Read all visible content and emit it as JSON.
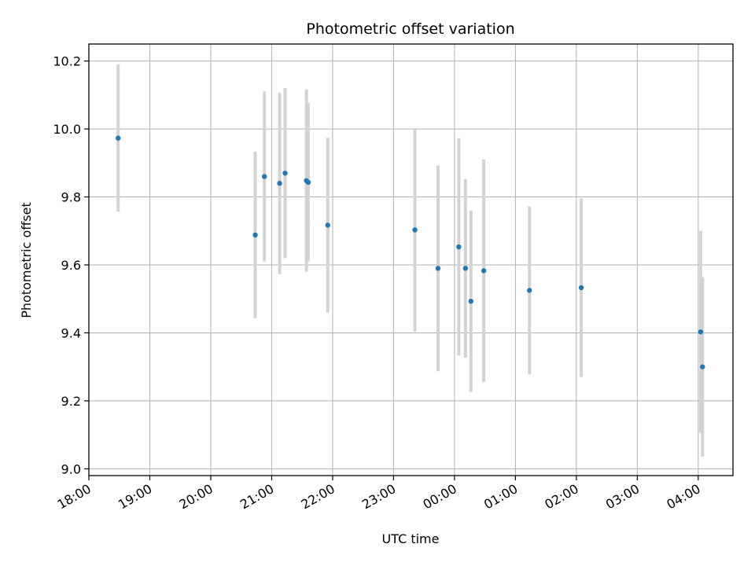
{
  "chart_data": {
    "type": "scatter",
    "title": "Photometric offset variation",
    "xlabel": "UTC time",
    "ylabel": "Photometric offset",
    "grid": true,
    "x_ticks": [
      "18:00",
      "19:00",
      "20:00",
      "21:00",
      "22:00",
      "23:00",
      "00:00",
      "01:00",
      "02:00",
      "03:00",
      "04:00"
    ],
    "y_ticks": [
      "9.0",
      "9.2",
      "9.4",
      "9.6",
      "9.8",
      "10.0",
      "10.2"
    ],
    "x_unit": "hours after 18:00 UTC",
    "xlim": [
      0,
      10.57
    ],
    "ylim": [
      8.98,
      10.25
    ],
    "colors": {
      "point": "#1f77b4",
      "errorbar": "#d3d3d3",
      "grid": "#b0b0b0"
    },
    "points": [
      {
        "time": "18:29",
        "x": 0.48,
        "y": 9.973,
        "err_low": 9.757,
        "err_high": 10.19
      },
      {
        "time": "20:43",
        "x": 2.73,
        "y": 9.688,
        "err_low": 9.443,
        "err_high": 9.933
      },
      {
        "time": "20:52",
        "x": 2.88,
        "y": 9.86,
        "err_low": 9.61,
        "err_high": 10.11
      },
      {
        "time": "21:08",
        "x": 3.13,
        "y": 9.84,
        "err_low": 9.573,
        "err_high": 10.107
      },
      {
        "time": "21:13",
        "x": 3.22,
        "y": 9.87,
        "err_low": 9.62,
        "err_high": 10.12
      },
      {
        "time": "21:34",
        "x": 3.57,
        "y": 9.848,
        "err_low": 9.58,
        "err_high": 10.116
      },
      {
        "time": "21:36",
        "x": 3.6,
        "y": 9.843,
        "err_low": 9.61,
        "err_high": 10.076
      },
      {
        "time": "21:55",
        "x": 3.92,
        "y": 9.717,
        "err_low": 9.46,
        "err_high": 9.974
      },
      {
        "time": "23:21",
        "x": 5.35,
        "y": 9.703,
        "err_low": 9.403,
        "err_high": 10.003
      },
      {
        "time": "23:44",
        "x": 5.73,
        "y": 9.59,
        "err_low": 9.287,
        "err_high": 9.893
      },
      {
        "time": "00:04",
        "x": 6.07,
        "y": 9.653,
        "err_low": 9.333,
        "err_high": 9.973
      },
      {
        "time": "00:11",
        "x": 6.18,
        "y": 9.59,
        "err_low": 9.327,
        "err_high": 9.853
      },
      {
        "time": "00:16",
        "x": 6.27,
        "y": 9.493,
        "err_low": 9.226,
        "err_high": 9.76
      },
      {
        "time": "00:29",
        "x": 6.48,
        "y": 9.583,
        "err_low": 9.256,
        "err_high": 9.91
      },
      {
        "time": "01:14",
        "x": 7.23,
        "y": 9.525,
        "err_low": 9.278,
        "err_high": 9.772
      },
      {
        "time": "02:05",
        "x": 8.08,
        "y": 9.533,
        "err_low": 9.27,
        "err_high": 9.796
      },
      {
        "time": "04:02",
        "x": 10.04,
        "y": 9.403,
        "err_low": 9.106,
        "err_high": 9.7
      },
      {
        "time": "04:04",
        "x": 10.07,
        "y": 9.3,
        "err_low": 9.036,
        "err_high": 9.564
      }
    ]
  }
}
